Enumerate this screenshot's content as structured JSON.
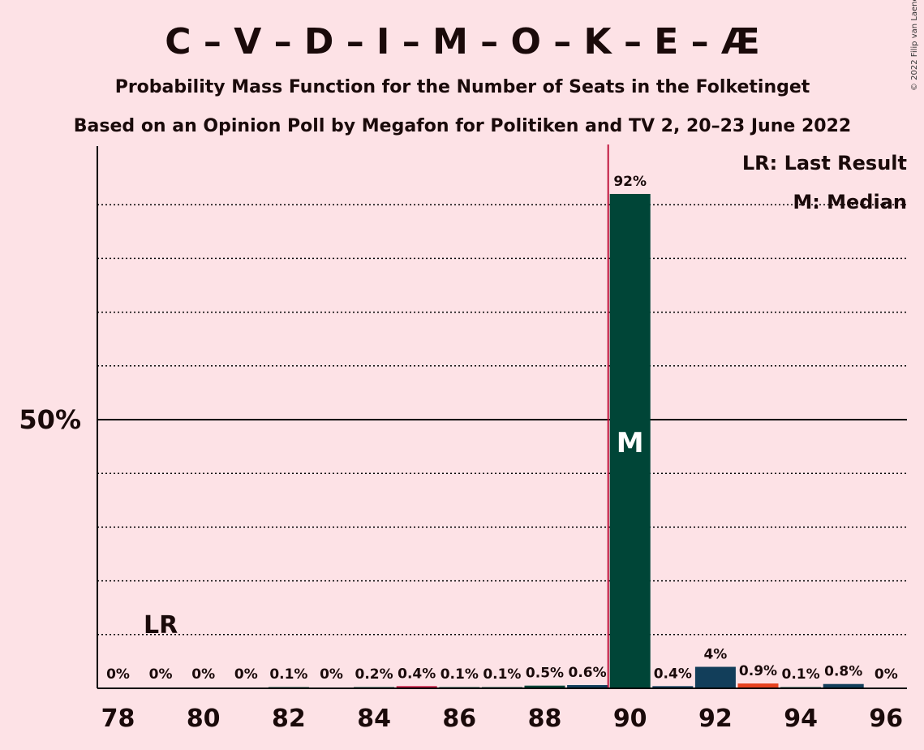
{
  "header": {
    "title": "C – V – D – I – M – O – K – E – Æ",
    "subtitle": "Probability Mass Function for the Number of Seats in the Folketinget",
    "subtitle2": "Based on an Opinion Poll by Megafon for Politiken and TV 2, 20–23 June 2022",
    "copyright": "© 2022 Filip van Laenen"
  },
  "legend": {
    "last_result": "LR: Last Result",
    "median": "M: Median"
  },
  "markers": {
    "lr_label": "LR",
    "lr_seat": 79,
    "median_label": "M",
    "median_seat": 90
  },
  "colors": {
    "background": "#fde2e6",
    "bar_primary": "#004537",
    "bar_secondary": "#123e5a",
    "bar_accent": "#e6421f",
    "median_line": "#c0143c"
  },
  "chart_data": {
    "type": "bar",
    "x": [
      78,
      79,
      80,
      81,
      82,
      83,
      84,
      85,
      86,
      87,
      88,
      89,
      90,
      91,
      92,
      93,
      94,
      95,
      96
    ],
    "values": [
      0,
      0,
      0,
      0,
      0.1,
      0,
      0.2,
      0.4,
      0.1,
      0.1,
      0.5,
      0.6,
      92,
      0.4,
      4,
      0.9,
      0.1,
      0.8,
      0
    ],
    "labels": [
      "0%",
      "0%",
      "0%",
      "0%",
      "0.1%",
      "0%",
      "0.2%",
      "0.4%",
      "0.1%",
      "0.1%",
      "0.5%",
      "0.6%",
      "92%",
      "0.4%",
      "4%",
      "0.9%",
      "0.1%",
      "0.8%",
      "0%"
    ],
    "bar_colors": [
      "#004537",
      "#004537",
      "#004537",
      "#004537",
      "#004537",
      "#004537",
      "#004537",
      "#c0143c",
      "#004537",
      "#004537",
      "#004537",
      "#123e5a",
      "#004537",
      "#123e5a",
      "#123e5a",
      "#e6421f",
      "#004537",
      "#123e5a",
      "#004537"
    ],
    "xticks": [
      78,
      80,
      82,
      84,
      86,
      88,
      90,
      92,
      94,
      96
    ],
    "yticks": [
      {
        "value": 50,
        "label": "50%"
      }
    ],
    "ylim": [
      0,
      100
    ],
    "grid": true,
    "legend_position": "top-right"
  }
}
